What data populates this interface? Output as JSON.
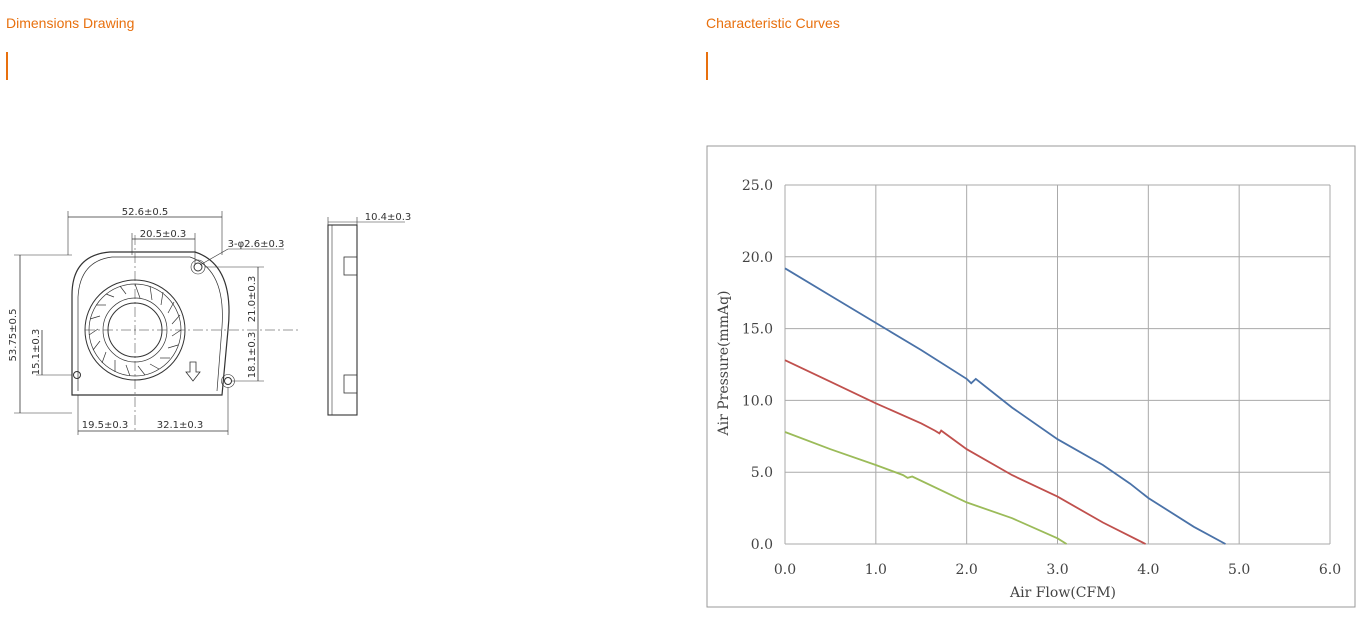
{
  "sections": {
    "left_title": "Dimensions Drawing",
    "right_title": "Characteristic Curves"
  },
  "drawing": {
    "dims": {
      "overall_width": "52.6±0.5",
      "top_offset": "20.5±0.3",
      "hole_spec": "3-φ2.6±0.3",
      "overall_height": "53.75±0.5",
      "right_upper": "21.0±0.3",
      "right_lower": "18.1±0.3",
      "left_offset": "15.1±0.3",
      "bottom_left": "19.5±0.3",
      "bottom_right": "32.1±0.3",
      "thickness": "10.4±0.3"
    }
  },
  "chart_data": {
    "type": "line",
    "xlabel": "Air Flow(CFM)",
    "ylabel": "Air Pressure(mmAq)",
    "xlim": [
      0,
      6
    ],
    "ylim": [
      0,
      25
    ],
    "xticks": [
      "0.0",
      "1.0",
      "2.0",
      "3.0",
      "4.0",
      "5.0",
      "6.0"
    ],
    "yticks": [
      "0.0",
      "5.0",
      "10.0",
      "15.0",
      "20.0",
      "25.0"
    ],
    "grid": true,
    "series": [
      {
        "color": "#4a72a8",
        "points": [
          [
            0,
            19.2
          ],
          [
            0.5,
            17.3
          ],
          [
            1.0,
            15.4
          ],
          [
            1.5,
            13.5
          ],
          [
            2.0,
            11.5
          ],
          [
            2.05,
            11.2
          ],
          [
            2.1,
            11.5
          ],
          [
            2.5,
            9.5
          ],
          [
            3.0,
            7.3
          ],
          [
            3.5,
            5.5
          ],
          [
            3.8,
            4.2
          ],
          [
            4.0,
            3.2
          ],
          [
            4.5,
            1.2
          ],
          [
            4.85,
            0
          ]
        ]
      },
      {
        "color": "#c0504d",
        "points": [
          [
            0,
            12.8
          ],
          [
            0.5,
            11.3
          ],
          [
            1.0,
            9.8
          ],
          [
            1.5,
            8.4
          ],
          [
            1.65,
            7.9
          ],
          [
            1.7,
            7.7
          ],
          [
            1.72,
            7.9
          ],
          [
            2.0,
            6.6
          ],
          [
            2.5,
            4.8
          ],
          [
            3.0,
            3.3
          ],
          [
            3.5,
            1.5
          ],
          [
            3.97,
            0
          ]
        ]
      },
      {
        "color": "#9bbb59",
        "points": [
          [
            0,
            7.8
          ],
          [
            0.5,
            6.6
          ],
          [
            1.0,
            5.5
          ],
          [
            1.3,
            4.8
          ],
          [
            1.35,
            4.6
          ],
          [
            1.4,
            4.7
          ],
          [
            2.0,
            2.9
          ],
          [
            2.5,
            1.8
          ],
          [
            3.0,
            0.4
          ],
          [
            3.1,
            0
          ]
        ]
      }
    ]
  }
}
